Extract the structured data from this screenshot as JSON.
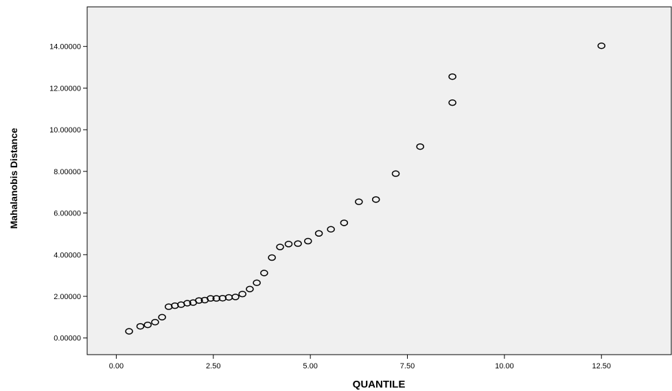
{
  "chart_data": {
    "type": "scatter",
    "title": "",
    "xlabel": "QUANTILE",
    "ylabel": "Mahalanobis Distance",
    "xlim": [
      -0.75,
      14.3
    ],
    "ylim": [
      -0.8,
      15.9
    ],
    "x_ticks": [
      0.0,
      2.5,
      5.0,
      7.5,
      10.0,
      12.5
    ],
    "x_tick_labels": [
      "0.00",
      "2.50",
      "5.00",
      "7.50",
      "10.00",
      "12.50"
    ],
    "y_ticks": [
      0,
      2,
      4,
      6,
      8,
      10,
      12,
      14
    ],
    "y_tick_labels": [
      "0.00000",
      "2.00000",
      "4.00000",
      "6.00000",
      "8.00000",
      "10.00000",
      "12.00000",
      "14.00000"
    ],
    "grid": false,
    "legend": "none",
    "plot_background": "#f0f0f0",
    "marker": "open-circle",
    "points": [
      {
        "x": 0.33,
        "y": 0.32
      },
      {
        "x": 0.62,
        "y": 0.56
      },
      {
        "x": 0.81,
        "y": 0.63
      },
      {
        "x": 1.0,
        "y": 0.76
      },
      {
        "x": 1.18,
        "y": 1.0
      },
      {
        "x": 1.35,
        "y": 1.5
      },
      {
        "x": 1.51,
        "y": 1.55
      },
      {
        "x": 1.67,
        "y": 1.6
      },
      {
        "x": 1.83,
        "y": 1.67
      },
      {
        "x": 1.98,
        "y": 1.7
      },
      {
        "x": 2.13,
        "y": 1.8
      },
      {
        "x": 2.28,
        "y": 1.82
      },
      {
        "x": 2.43,
        "y": 1.9
      },
      {
        "x": 2.58,
        "y": 1.9
      },
      {
        "x": 2.74,
        "y": 1.91
      },
      {
        "x": 2.9,
        "y": 1.95
      },
      {
        "x": 3.07,
        "y": 1.97
      },
      {
        "x": 3.25,
        "y": 2.11
      },
      {
        "x": 3.44,
        "y": 2.35
      },
      {
        "x": 3.62,
        "y": 2.65
      },
      {
        "x": 3.81,
        "y": 3.12
      },
      {
        "x": 4.01,
        "y": 3.86
      },
      {
        "x": 4.22,
        "y": 4.37
      },
      {
        "x": 4.44,
        "y": 4.51
      },
      {
        "x": 4.68,
        "y": 4.53
      },
      {
        "x": 4.94,
        "y": 4.65
      },
      {
        "x": 5.22,
        "y": 5.02
      },
      {
        "x": 5.53,
        "y": 5.22
      },
      {
        "x": 5.87,
        "y": 5.53
      },
      {
        "x": 6.25,
        "y": 6.54
      },
      {
        "x": 6.69,
        "y": 6.65
      },
      {
        "x": 7.2,
        "y": 7.89
      },
      {
        "x": 7.83,
        "y": 9.19
      },
      {
        "x": 8.66,
        "y": 11.3
      },
      {
        "x": 8.66,
        "y": 12.55
      },
      {
        "x": 12.5,
        "y": 14.03
      }
    ]
  }
}
